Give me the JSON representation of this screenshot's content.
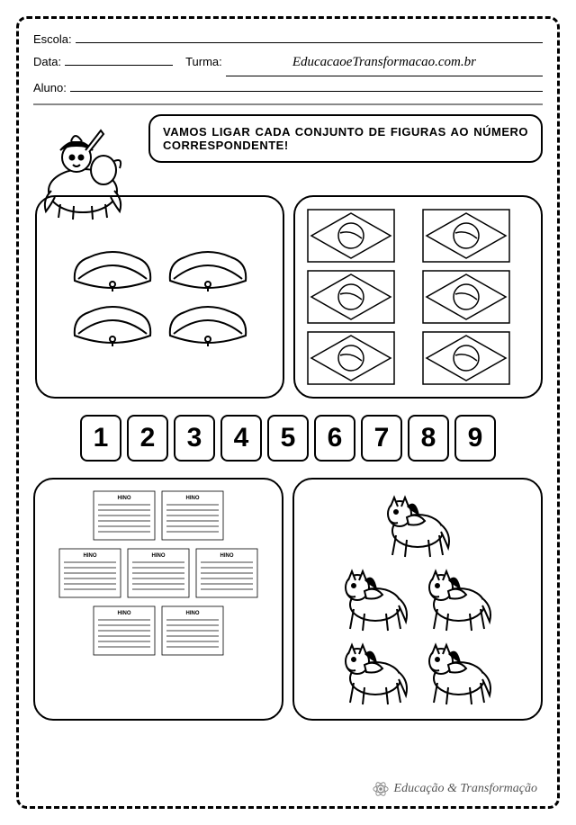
{
  "header": {
    "escola_label": "Escola:",
    "data_label": "Data:",
    "turma_label": "Turma:",
    "aluno_label": "Aluno:",
    "website": "EducacaoeTransformacao.com.br"
  },
  "instruction": "VAMOS LIGAR CADA CONJUNTO DE FIGURAS AO NÚMERO CORRESPONDENTE!",
  "numbers": [
    "1",
    "2",
    "3",
    "4",
    "5",
    "6",
    "7",
    "8",
    "9"
  ],
  "sets": {
    "hats_count": 4,
    "flags_count": 6,
    "sheets_count": 7,
    "horses_count": 5,
    "sheet_title": "HINO"
  },
  "footer": "Educação & Transformação",
  "colors": {
    "stroke": "#000000",
    "background": "#ffffff",
    "footer": "#555555"
  }
}
